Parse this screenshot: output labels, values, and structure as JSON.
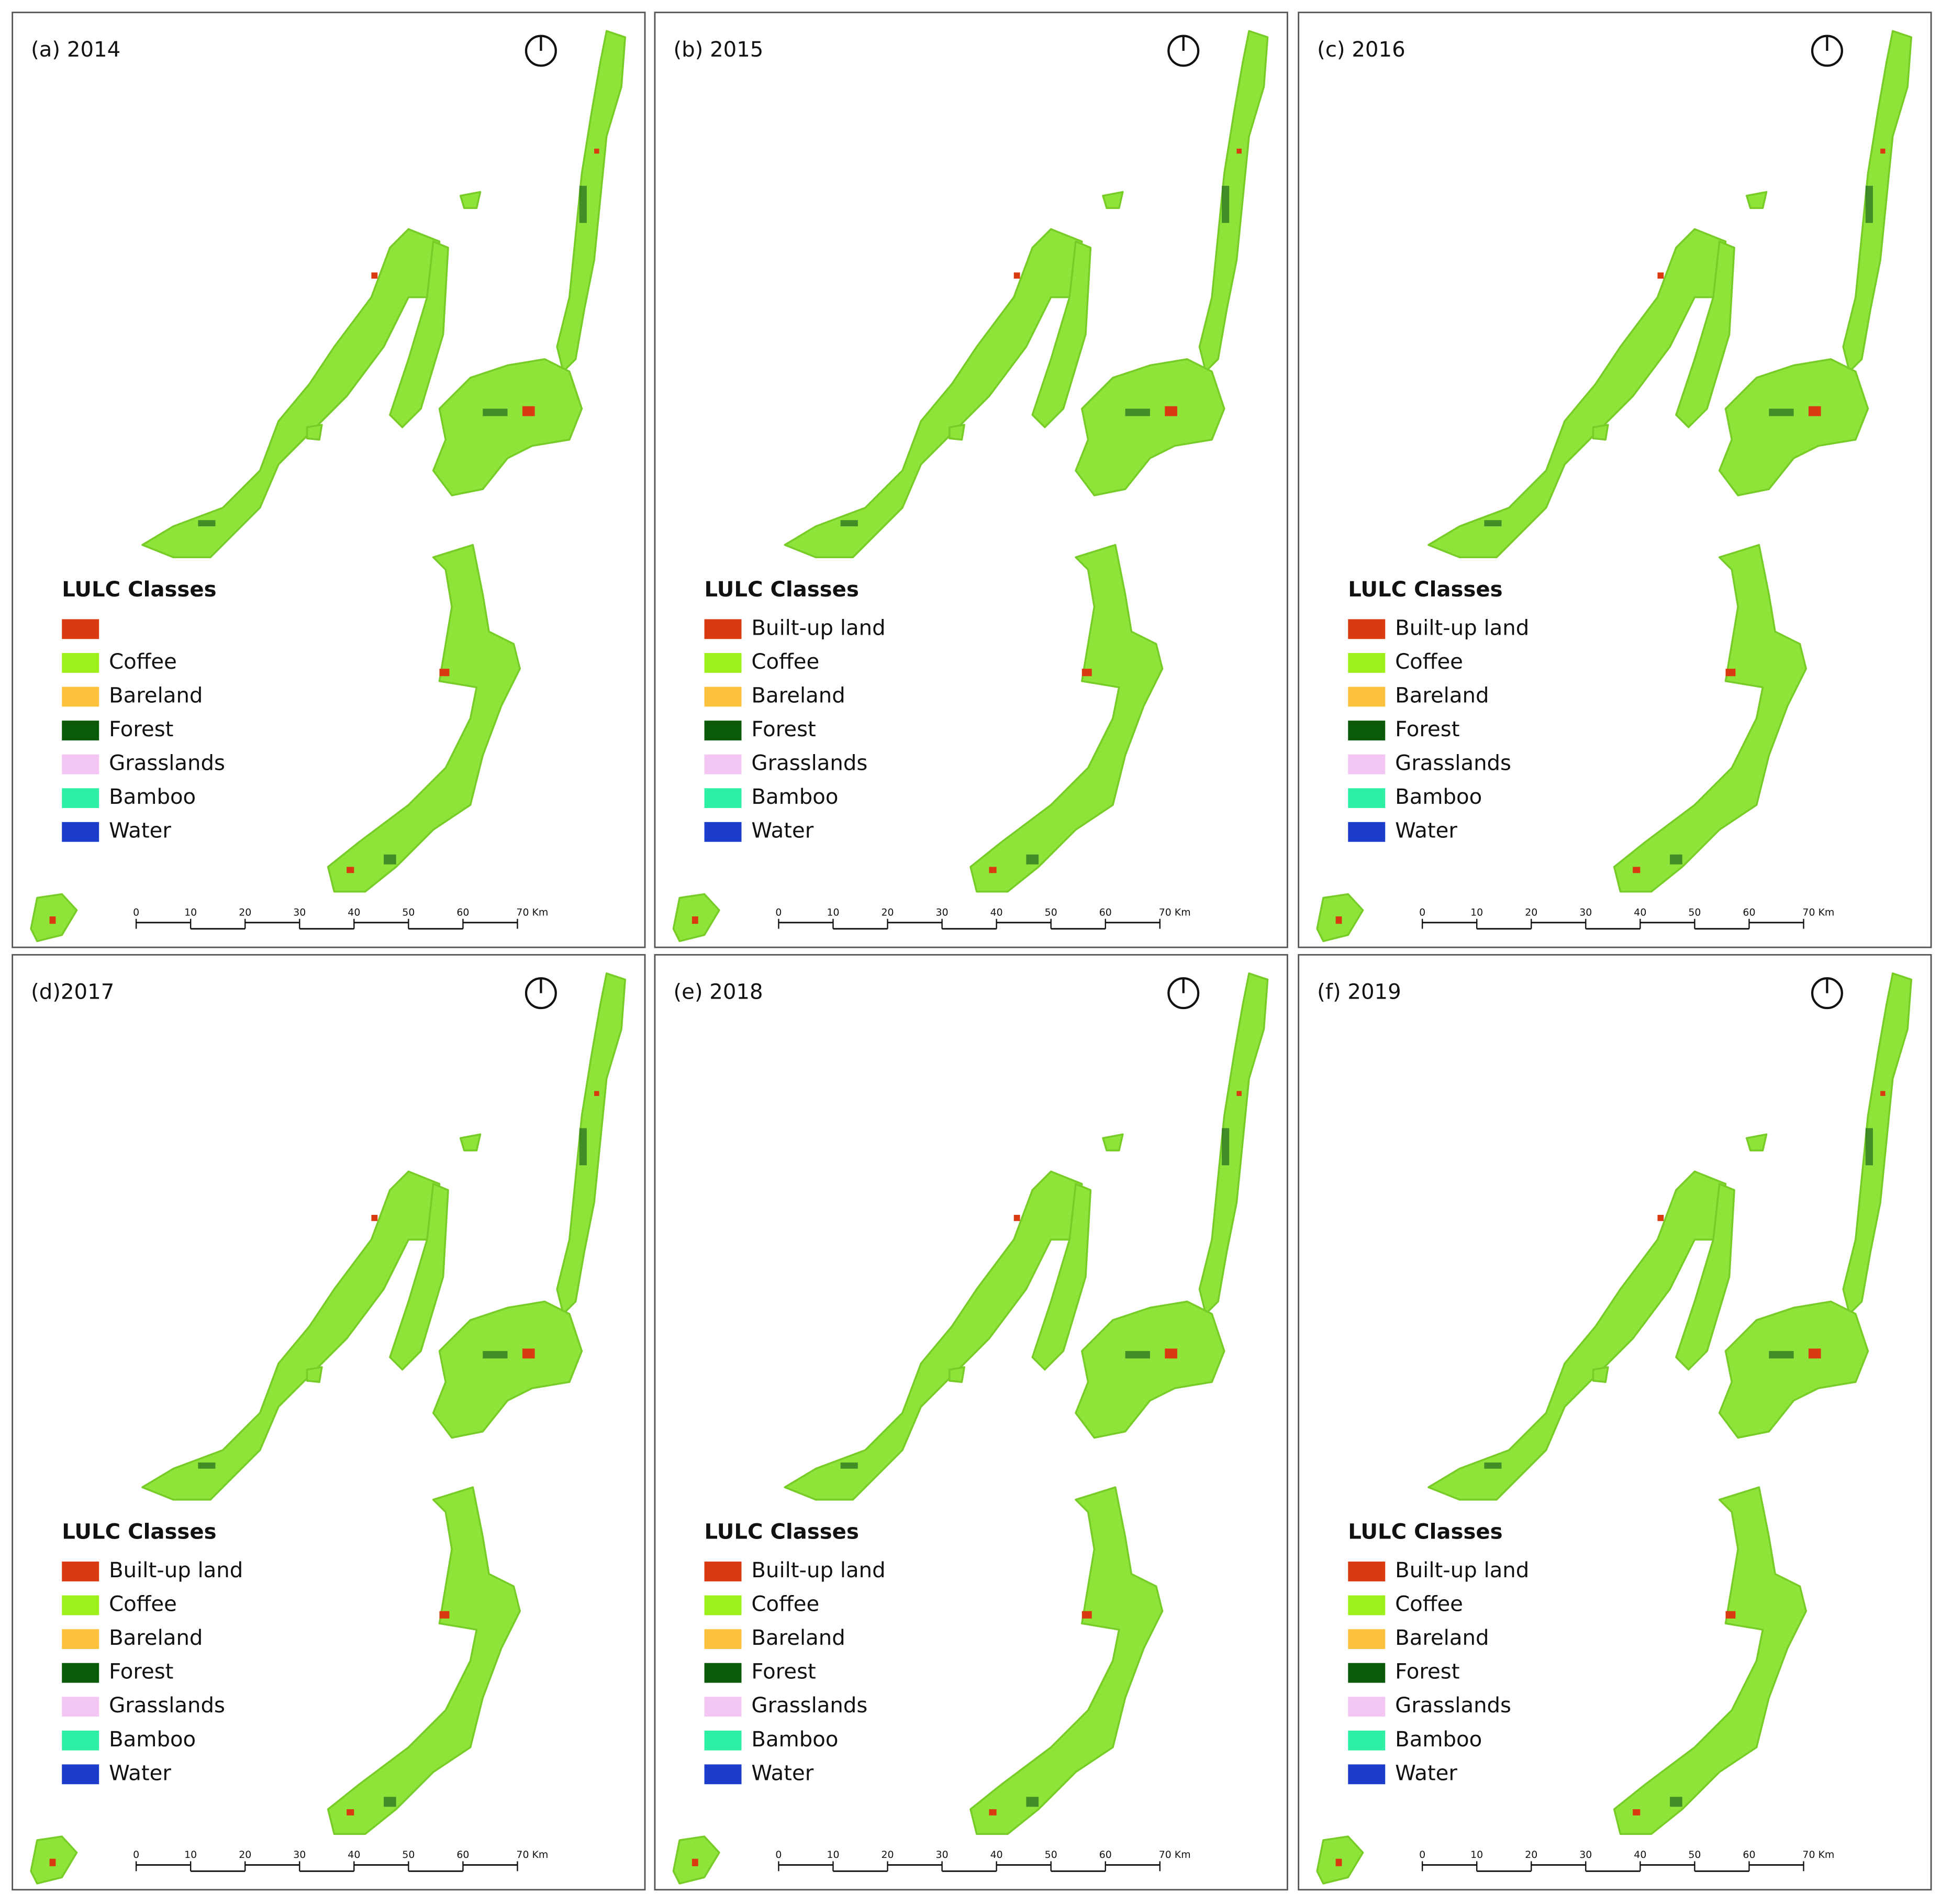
{
  "panels": [
    {
      "title": "(a) 2014",
      "legend": {
        "title": "LULC Classes",
        "items": [
          {
            "name": null,
            "color": "#d93a10"
          },
          {
            "name": "Coffee",
            "color": "#9ef01a"
          },
          {
            "name": "Bareland",
            "color": "#fdc23d"
          },
          {
            "name": "Forest",
            "color": "#0a5a0a"
          },
          {
            "name": "Grasslands",
            "color": "#f4c6f4"
          },
          {
            "name": "Bamboo",
            "color": "#2ef0a4"
          },
          {
            "name": "Water",
            "color": "#1c3ccc"
          }
        ]
      }
    },
    {
      "title": "(b) 2015",
      "legend": {
        "title": "LULC Classes",
        "items": [
          {
            "name": "Built-up land",
            "color": "#d93a10"
          },
          {
            "name": "Coffee",
            "color": "#9ef01a"
          },
          {
            "name": "Bareland",
            "color": "#fdc23d"
          },
          {
            "name": "Forest",
            "color": "#0a5a0a"
          },
          {
            "name": "Grasslands",
            "color": "#f4c6f4"
          },
          {
            "name": "Bamboo",
            "color": "#2ef0a4"
          },
          {
            "name": "Water",
            "color": "#1c3ccc"
          }
        ]
      }
    },
    {
      "title": "(c) 2016",
      "legend": {
        "title": "LULC Classes",
        "items": [
          {
            "name": "Built-up land",
            "color": "#d93a10"
          },
          {
            "name": "Coffee",
            "color": "#9ef01a"
          },
          {
            "name": "Bareland",
            "color": "#fdc23d"
          },
          {
            "name": "Forest",
            "color": "#0a5a0a"
          },
          {
            "name": "Grasslands",
            "color": "#f4c6f4"
          },
          {
            "name": "Bamboo",
            "color": "#2ef0a4"
          },
          {
            "name": "Water",
            "color": "#1c3ccc"
          }
        ]
      }
    },
    {
      "title": "(d)2017",
      "legend": {
        "title": "LULC Classes",
        "items": [
          {
            "name": "Built-up land",
            "color": "#d93a10"
          },
          {
            "name": "Coffee",
            "color": "#9ef01a"
          },
          {
            "name": "Bareland",
            "color": "#fdc23d"
          },
          {
            "name": "Forest",
            "color": "#0a5a0a"
          },
          {
            "name": "Grasslands",
            "color": "#f4c6f4"
          },
          {
            "name": "Bamboo",
            "color": "#2ef0a4"
          },
          {
            "name": "Water",
            "color": "#1c3ccc"
          }
        ]
      }
    },
    {
      "title": "(e) 2018",
      "legend": {
        "title": "LULC Classes",
        "items": [
          {
            "name": "Built-up land",
            "color": "#d93a10"
          },
          {
            "name": "Coffee",
            "color": "#9ef01a"
          },
          {
            "name": "Bareland",
            "color": "#fdc23d"
          },
          {
            "name": "Forest",
            "color": "#0a5a0a"
          },
          {
            "name": "Grasslands",
            "color": "#f4c6f4"
          },
          {
            "name": "Bamboo",
            "color": "#2ef0a4"
          },
          {
            "name": "Water",
            "color": "#1c3ccc"
          }
        ]
      }
    },
    {
      "title": "(f) 2019",
      "legend": {
        "title": "LULC Classes",
        "items": [
          {
            "name": "Built-up land",
            "color": "#d93a10"
          },
          {
            "name": "Coffee",
            "color": "#9ef01a"
          },
          {
            "name": "Bareland",
            "color": "#fdc23d"
          },
          {
            "name": "Forest",
            "color": "#0a5a0a"
          },
          {
            "name": "Grasslands",
            "color": "#f4c6f4"
          },
          {
            "name": "Bamboo",
            "color": "#2ef0a4"
          },
          {
            "name": "Water",
            "color": "#1c3ccc"
          }
        ]
      }
    }
  ],
  "scale_bar_labels": [
    "0",
    "10",
    "20",
    "30",
    "40",
    "50",
    "60",
    "70 Km"
  ]
}
